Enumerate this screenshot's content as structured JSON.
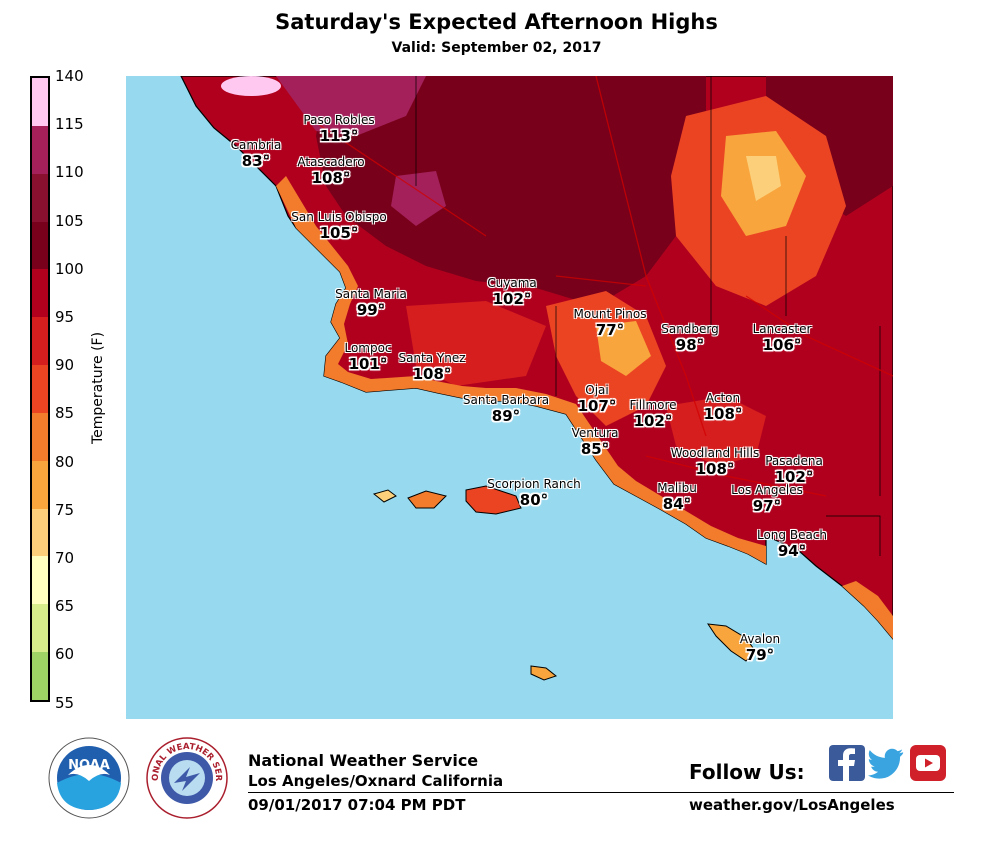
{
  "header": {
    "title": "Saturday's Expected Afternoon Highs",
    "valid": "Valid: September 02, 2017"
  },
  "legend": {
    "label": "Temperature (F)",
    "ticks": [
      "140",
      "115",
      "110",
      "105",
      "100",
      "95",
      "90",
      "85",
      "80",
      "75",
      "70",
      "65",
      "60",
      "55"
    ],
    "colors": [
      "#ffc8f0",
      "#a3205a",
      "#8a1030",
      "#78001a",
      "#b0001e",
      "#d61e1e",
      "#eb4423",
      "#f27b2c",
      "#f8a53d",
      "#fcd07a",
      "#ffffc0",
      "#d7ec8a",
      "#9ed465",
      "#5fb25a"
    ]
  },
  "map": {
    "ocean_color": "#97d9ef",
    "cities": [
      {
        "name": "Paso Robles",
        "temp": "113°"
      },
      {
        "name": "Cambria",
        "temp": "83°"
      },
      {
        "name": "Atascadero",
        "temp": "108°"
      },
      {
        "name": "San Luis Obispo",
        "temp": "105°"
      },
      {
        "name": "Cuyama",
        "temp": "102°"
      },
      {
        "name": "Santa Maria",
        "temp": "99°"
      },
      {
        "name": "Mount Pinos",
        "temp": "77°"
      },
      {
        "name": "Sandberg",
        "temp": "98°"
      },
      {
        "name": "Lancaster",
        "temp": "106°"
      },
      {
        "name": "Lompoc",
        "temp": "101°"
      },
      {
        "name": "Santa Ynez",
        "temp": "108°"
      },
      {
        "name": "Ojai",
        "temp": "107°"
      },
      {
        "name": "Santa Barbara",
        "temp": "89°"
      },
      {
        "name": "Fillmore",
        "temp": "102°"
      },
      {
        "name": "Acton",
        "temp": "108°"
      },
      {
        "name": "Ventura",
        "temp": "85°"
      },
      {
        "name": "Woodland Hills",
        "temp": "108°"
      },
      {
        "name": "Pasadena",
        "temp": "102°"
      },
      {
        "name": "Scorpion Ranch",
        "temp": "80°"
      },
      {
        "name": "Malibu",
        "temp": "84°"
      },
      {
        "name": "Los Angeles",
        "temp": "97°"
      },
      {
        "name": "Long Beach",
        "temp": "94°"
      },
      {
        "name": "Avalon",
        "temp": "79°"
      }
    ]
  },
  "footer": {
    "org": "National Weather Service",
    "office": "Los Angeles/Oxnard California",
    "issued": "09/01/2017 07:04 PM PDT",
    "follow": "Follow Us:",
    "website": "weather.gov/LosAngeles",
    "noaa_text": "NOAA",
    "nws_text": "NATIONAL WEATHER SERVICE"
  }
}
